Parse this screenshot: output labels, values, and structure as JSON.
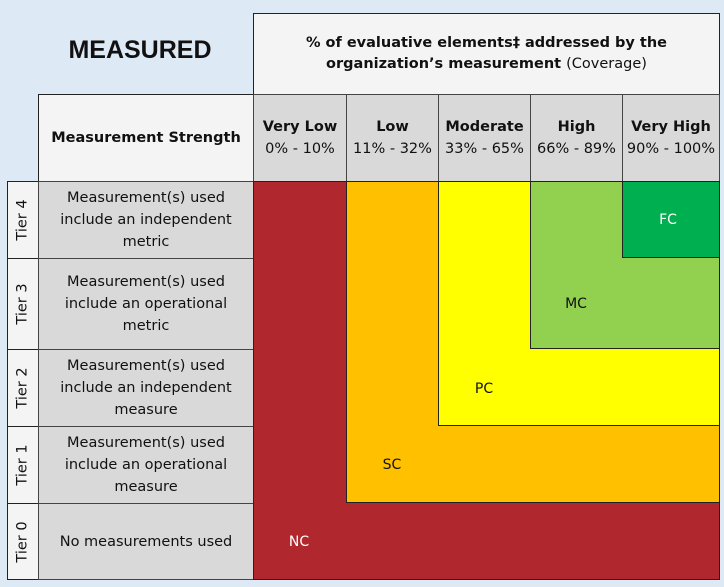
{
  "title": "MEASURED",
  "coverage_header": {
    "bold": "% of evaluative elements‡ addressed by the organization’s measurement",
    "normal": "(Coverage)"
  },
  "strength_header": "Measurement Strength",
  "columns": [
    {
      "label": "Very Low",
      "range": "0% - 10%"
    },
    {
      "label": "Low",
      "range": "11% - 32%"
    },
    {
      "label": "Moderate",
      "range": "33% - 65%"
    },
    {
      "label": "High",
      "range": "66% - 89%"
    },
    {
      "label": "Very High",
      "range": "90% - 100%"
    }
  ],
  "rows": [
    {
      "tier": "Tier 4",
      "desc": "Measurement(s) used include an independent metric"
    },
    {
      "tier": "Tier 3",
      "desc": "Measurement(s) used include an operational metric"
    },
    {
      "tier": "Tier 2",
      "desc": "Measurement(s) used include an independent measure"
    },
    {
      "tier": "Tier 1",
      "desc": "Measurement(s) used include an operational measure"
    },
    {
      "tier": "Tier 0",
      "desc": "No measurements used"
    }
  ],
  "zones": [
    {
      "label": "NC",
      "color": "#b0272d"
    },
    {
      "label": "SC",
      "color": "#ffc000"
    },
    {
      "label": "PC",
      "color": "#ffff00"
    },
    {
      "label": "MC",
      "color": "#92d050"
    },
    {
      "label": "FC",
      "color": "#00b050"
    }
  ]
}
